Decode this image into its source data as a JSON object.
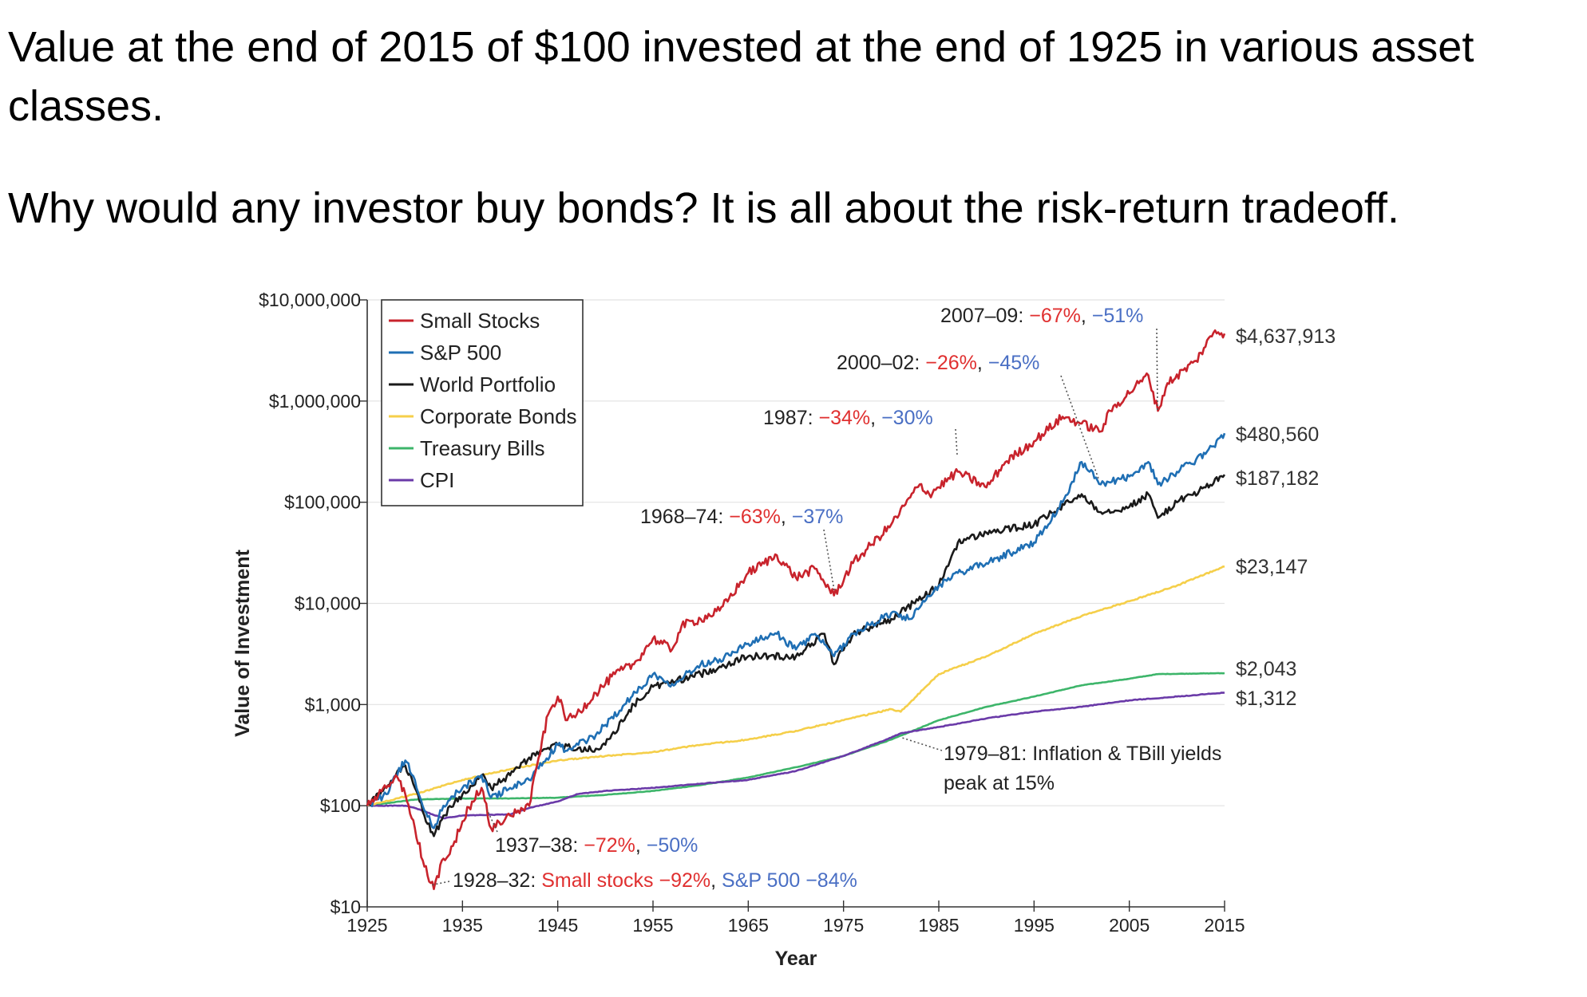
{
  "page": {
    "heading_1": "Value at the end of 2015 of $100 invested at the end of 1925 in various asset classes.",
    "heading_2": "Why would any investor buy bonds? It is all about the risk-return tradeoff."
  },
  "chart_data": {
    "type": "line",
    "title": "",
    "xlabel": "Year",
    "ylabel": "Value of Investment",
    "y_scale": "log",
    "xlim": [
      1925,
      2015
    ],
    "ylim": [
      10,
      10000000
    ],
    "x_ticks": [
      1925,
      1935,
      1945,
      1955,
      1965,
      1975,
      1985,
      1995,
      2005,
      2015
    ],
    "y_ticks": [
      {
        "value": 10,
        "label": "$10"
      },
      {
        "value": 100,
        "label": "$100"
      },
      {
        "value": 1000,
        "label": "$1,000"
      },
      {
        "value": 10000,
        "label": "$10,000"
      },
      {
        "value": 100000,
        "label": "$100,000"
      },
      {
        "value": 1000000,
        "label": "$1,000,000"
      },
      {
        "value": 10000000,
        "label": "$10,000,000"
      }
    ],
    "grid": true,
    "legend_position": "top-left",
    "colors": {
      "small_stocks": "#c8232c",
      "sp500": "#1f6fb4",
      "world_portfolio": "#1a1a1a",
      "corporate_bonds": "#f5cf4a",
      "treasury_bills": "#3db56a",
      "cpi": "#6a3aa8",
      "annotation_red": "#e03030",
      "annotation_blue": "#4a6fc4"
    },
    "series": [
      {
        "key": "small_stocks",
        "name": "Small Stocks",
        "end_label": "$4,637,913",
        "x": [
          1925,
          1927,
          1928,
          1929,
          1930,
          1931,
          1932,
          1933,
          1934,
          1935,
          1936,
          1937,
          1938,
          1940,
          1942,
          1943,
          1944,
          1945,
          1946,
          1947,
          1949,
          1951,
          1953,
          1955,
          1957,
          1958,
          1960,
          1962,
          1965,
          1968,
          1970,
          1972,
          1974,
          1976,
          1980,
          1983,
          1984,
          1987,
          1990,
          1992,
          1995,
          1998,
          2000,
          2002,
          2003,
          2006,
          2007,
          2008,
          2009,
          2012,
          2014,
          2015
        ],
        "y": [
          100,
          150,
          200,
          130,
          60,
          25,
          15,
          30,
          40,
          70,
          110,
          150,
          60,
          80,
          100,
          300,
          800,
          1200,
          700,
          800,
          1300,
          2000,
          2500,
          4500,
          3500,
          6000,
          7000,
          8500,
          20000,
          30000,
          18000,
          22000,
          12000,
          25000,
          60000,
          150000,
          120000,
          200000,
          140000,
          250000,
          400000,
          700000,
          600000,
          500000,
          800000,
          1500000,
          1800000,
          800000,
          1500000,
          2500000,
          5000000,
          4637913
        ]
      },
      {
        "key": "sp500",
        "name": "S&P 500",
        "end_label": "$480,560",
        "x": [
          1925,
          1927,
          1928,
          1929,
          1930,
          1931,
          1932,
          1933,
          1935,
          1937,
          1938,
          1940,
          1942,
          1945,
          1946,
          1949,
          1952,
          1955,
          1957,
          1960,
          1962,
          1965,
          1968,
          1970,
          1972,
          1974,
          1976,
          1980,
          1982,
          1985,
          1987,
          1990,
          1995,
          1998,
          2000,
          2002,
          2005,
          2007,
          2008,
          2010,
          2013,
          2015
        ],
        "y": [
          100,
          130,
          200,
          280,
          180,
          90,
          60,
          100,
          150,
          200,
          120,
          150,
          180,
          400,
          350,
          500,
          1000,
          2000,
          1600,
          2500,
          2800,
          4000,
          5000,
          3500,
          5000,
          3000,
          5000,
          8000,
          7000,
          15000,
          20000,
          25000,
          40000,
          100000,
          250000,
          150000,
          180000,
          250000,
          150000,
          200000,
          300000,
          480560
        ]
      },
      {
        "key": "world_portfolio",
        "name": "World Portfolio",
        "end_label": "$187,182",
        "x": [
          1925,
          1927,
          1928,
          1929,
          1930,
          1931,
          1932,
          1933,
          1935,
          1937,
          1938,
          1940,
          1942,
          1945,
          1948,
          1950,
          1953,
          1955,
          1960,
          1965,
          1970,
          1973,
          1974,
          1976,
          1980,
          1985,
          1987,
          1990,
          1995,
          2000,
          2002,
          2005,
          2007,
          2008,
          2010,
          2013,
          2015
        ],
        "y": [
          100,
          150,
          200,
          250,
          150,
          80,
          50,
          80,
          130,
          200,
          150,
          200,
          300,
          400,
          350,
          400,
          1000,
          1500,
          2000,
          3000,
          3000,
          5000,
          2500,
          5000,
          7000,
          15000,
          40000,
          50000,
          60000,
          120000,
          80000,
          90000,
          120000,
          70000,
          100000,
          140000,
          187182
        ]
      },
      {
        "key": "corporate_bonds",
        "name": "Corporate Bonds",
        "end_label": "$23,147",
        "x": [
          1925,
          1930,
          1935,
          1940,
          1945,
          1950,
          1955,
          1960,
          1965,
          1970,
          1975,
          1980,
          1981,
          1985,
          1990,
          1995,
          2000,
          2005,
          2010,
          2015
        ],
        "y": [
          100,
          130,
          180,
          230,
          280,
          310,
          340,
          400,
          450,
          550,
          700,
          900,
          850,
          2000,
          3000,
          5000,
          7500,
          10500,
          15000,
          23147
        ]
      },
      {
        "key": "treasury_bills",
        "name": "Treasury Bills",
        "end_label": "$2,043",
        "x": [
          1925,
          1930,
          1935,
          1940,
          1945,
          1950,
          1955,
          1960,
          1965,
          1970,
          1975,
          1980,
          1985,
          1990,
          1995,
          2000,
          2005,
          2008,
          2015
        ],
        "y": [
          100,
          115,
          118,
          118,
          120,
          128,
          140,
          160,
          190,
          240,
          310,
          450,
          700,
          950,
          1200,
          1550,
          1800,
          2000,
          2043
        ]
      },
      {
        "key": "cpi",
        "name": "CPI",
        "end_label": "$1,312",
        "x": [
          1925,
          1929,
          1930,
          1933,
          1935,
          1940,
          1942,
          1945,
          1947,
          1950,
          1955,
          1960,
          1965,
          1970,
          1975,
          1980,
          1981,
          1985,
          1990,
          1995,
          2000,
          2005,
          2010,
          2015
        ],
        "y": [
          100,
          100,
          95,
          75,
          80,
          82,
          95,
          110,
          130,
          140,
          150,
          165,
          180,
          220,
          310,
          470,
          520,
          600,
          730,
          850,
          950,
          1100,
          1200,
          1312
        ]
      }
    ],
    "annotations": [
      {
        "parts": [
          {
            "text": "2007–09: ",
            "tone": "black"
          },
          {
            "text": "−67%",
            "tone": "red"
          },
          {
            "text": ", ",
            "tone": "black"
          },
          {
            "text": "−51%",
            "tone": "blue"
          }
        ]
      },
      {
        "parts": [
          {
            "text": "2000–02: ",
            "tone": "black"
          },
          {
            "text": "−26%",
            "tone": "red"
          },
          {
            "text": ", ",
            "tone": "black"
          },
          {
            "text": "−45%",
            "tone": "blue"
          }
        ]
      },
      {
        "parts": [
          {
            "text": "1987: ",
            "tone": "black"
          },
          {
            "text": "−34%",
            "tone": "red"
          },
          {
            "text": ", ",
            "tone": "black"
          },
          {
            "text": "−30%",
            "tone": "blue"
          }
        ]
      },
      {
        "parts": [
          {
            "text": "1968–74: ",
            "tone": "black"
          },
          {
            "text": "−63%",
            "tone": "red"
          },
          {
            "text": ", ",
            "tone": "black"
          },
          {
            "text": "−37%",
            "tone": "blue"
          }
        ]
      },
      {
        "parts": [
          {
            "text": "1937–38: ",
            "tone": "black"
          },
          {
            "text": "−72%",
            "tone": "red"
          },
          {
            "text": ", ",
            "tone": "black"
          },
          {
            "text": "−50%",
            "tone": "blue"
          }
        ]
      },
      {
        "parts": [
          {
            "text": "1928–32: ",
            "tone": "black"
          },
          {
            "text": "Small stocks −92%",
            "tone": "red"
          },
          {
            "text": ", ",
            "tone": "black"
          },
          {
            "text": "S&P 500 −84%",
            "tone": "blue"
          }
        ]
      },
      {
        "parts": [
          {
            "text": "1979–81: Inflation & TBill yields",
            "tone": "black"
          }
        ]
      },
      {
        "parts": [
          {
            "text": "peak at 15%",
            "tone": "black"
          }
        ]
      }
    ]
  }
}
